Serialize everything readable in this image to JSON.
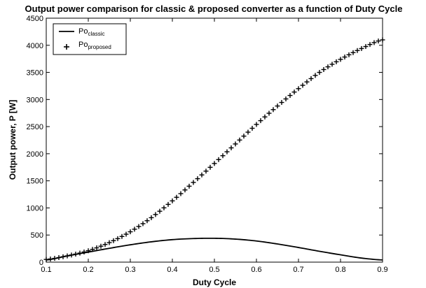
{
  "chart_data": {
    "type": "line",
    "title": "Output power comparison for classic & proposed converter as a function of Duty Cycle",
    "xlabel": "Duty Cycle",
    "ylabel": "Output power, P [W]",
    "xlim": [
      0.1,
      0.9
    ],
    "ylim": [
      0,
      4500
    ],
    "grid": false,
    "legend_position": "top-left",
    "x_ticks": [
      0.1,
      0.2,
      0.3,
      0.4,
      0.5,
      0.6,
      0.7,
      0.8,
      0.9
    ],
    "x_tick_labels": [
      "0.1",
      "0.2",
      "0.3",
      "0.4",
      "0.5",
      "0.6",
      "0.7",
      "0.8",
      "0.9"
    ],
    "y_ticks": [
      0,
      500,
      1000,
      1500,
      2000,
      2500,
      3000,
      3500,
      4000,
      4500
    ],
    "y_tick_labels": [
      "0",
      "500",
      "1000",
      "1500",
      "2000",
      "2500",
      "3000",
      "3500",
      "4000",
      "4500"
    ],
    "x": [
      0.1,
      0.15,
      0.2,
      0.25,
      0.3,
      0.35,
      0.4,
      0.45,
      0.5,
      0.55,
      0.6,
      0.65,
      0.7,
      0.75,
      0.8,
      0.85,
      0.9
    ],
    "series": [
      {
        "name": "Po",
        "name_subscript": "classic",
        "style": "line",
        "color": "#000000",
        "values": [
          40,
          115,
          185,
          255,
          320,
          375,
          415,
          435,
          440,
          425,
          390,
          335,
          270,
          200,
          135,
          75,
          40
        ]
      },
      {
        "name": "Po",
        "name_subscript": "proposed",
        "style": "markers-plus",
        "color": "#000000",
        "values": [
          50,
          115,
          210,
          360,
          560,
          820,
          1130,
          1470,
          1820,
          2180,
          2540,
          2880,
          3200,
          3500,
          3740,
          3940,
          4100
        ]
      }
    ]
  }
}
